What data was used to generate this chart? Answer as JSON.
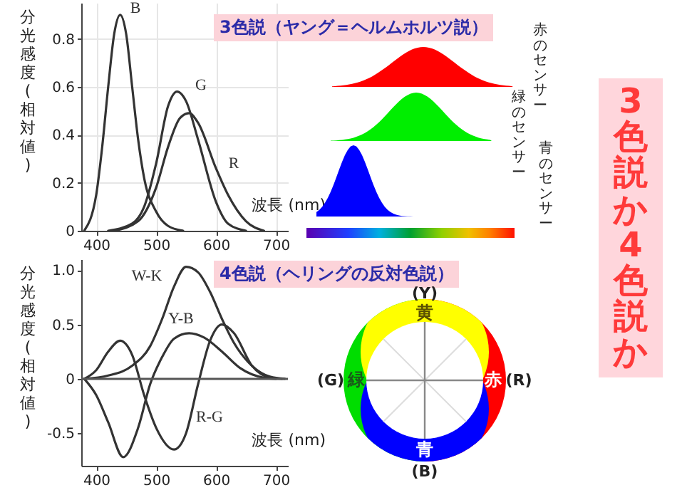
{
  "chart_data": [
    {
      "type": "line",
      "title": "3色説（ヤング＝ヘルムホルツ説）",
      "xlabel": "波長 (nm)",
      "ylabel": "分光感度(相対値)",
      "xlim": [
        375,
        720
      ],
      "xticks": [
        400,
        500,
        600,
        700
      ],
      "ylim": [
        0,
        0.95
      ],
      "yticks": [
        0,
        0.2,
        0.4,
        0.6,
        0.8
      ],
      "grid": true,
      "series": [
        {
          "name": "B",
          "color": "#333333",
          "x": [
            380,
            400,
            410,
            420,
            430,
            440,
            450,
            460,
            470,
            480,
            500,
            520,
            545
          ],
          "values": [
            0,
            0.15,
            0.35,
            0.6,
            0.82,
            0.9,
            0.82,
            0.6,
            0.38,
            0.22,
            0.08,
            0.02,
            0
          ]
        },
        {
          "name": "G",
          "color": "#333333",
          "x": [
            420,
            460,
            480,
            500,
            520,
            535,
            550,
            570,
            600,
            620,
            650
          ],
          "values": [
            0,
            0.03,
            0.1,
            0.28,
            0.52,
            0.58,
            0.54,
            0.38,
            0.12,
            0.03,
            0
          ]
        },
        {
          "name": "R",
          "color": "#333333",
          "x": [
            430,
            470,
            500,
            520,
            540,
            555,
            570,
            600,
            620,
            650,
            680
          ],
          "values": [
            0,
            0.04,
            0.18,
            0.35,
            0.47,
            0.49,
            0.45,
            0.26,
            0.15,
            0.04,
            0
          ]
        }
      ],
      "annotations": [
        "赤のセンサー",
        "緑のセンサー",
        "青のセンサー"
      ]
    },
    {
      "type": "line",
      "title": "4色説（ヘリングの反対色説）",
      "xlabel": "波長 (nm)",
      "ylabel": "分光感度(相対値)",
      "xlim": [
        375,
        720
      ],
      "xticks": [
        400,
        500,
        600,
        700
      ],
      "ylim": [
        -0.8,
        1.1
      ],
      "yticks": [
        -0.5,
        0,
        0.5,
        {
          "value": 1,
          "label": "1.0"
        }
      ],
      "series": [
        {
          "name": "W-K",
          "color": "#333333",
          "x": [
            380,
            420,
            460,
            490,
            510,
            530,
            550,
            570,
            590,
            610,
            630,
            660,
            690,
            715
          ],
          "values": [
            0,
            0.03,
            0.12,
            0.3,
            0.55,
            0.85,
            1.03,
            0.98,
            0.8,
            0.55,
            0.33,
            0.12,
            0.02,
            0
          ]
        },
        {
          "name": "Y-B",
          "color": "#333333",
          "x": [
            380,
            400,
            420,
            445,
            470,
            490,
            510,
            530,
            555,
            580,
            610,
            640,
            680,
            700
          ],
          "values": [
            0,
            -0.15,
            -0.4,
            -0.72,
            -0.45,
            -0.05,
            0.2,
            0.37,
            0.42,
            0.38,
            0.25,
            0.1,
            0.01,
            0
          ]
        },
        {
          "name": "R-G",
          "color": "#333333",
          "x": [
            380,
            400,
            420,
            440,
            460,
            480,
            500,
            530,
            550,
            570,
            590,
            610,
            630,
            660,
            690,
            710
          ],
          "values": [
            0,
            0.08,
            0.25,
            0.35,
            0.22,
            -0.15,
            -0.45,
            -0.65,
            -0.5,
            -0.05,
            0.35,
            0.5,
            0.42,
            0.12,
            0.01,
            0
          ]
        }
      ],
      "ref_lines": [
        {
          "axis": "y",
          "value": 0,
          "color": "#555555"
        }
      ],
      "annotations": [
        "(Y)",
        "黄",
        "(G)",
        "緑",
        "赤",
        "(R)",
        "青",
        "(B)"
      ]
    },
    {
      "type": "other",
      "title": "3色説か4色説か"
    }
  ]
}
